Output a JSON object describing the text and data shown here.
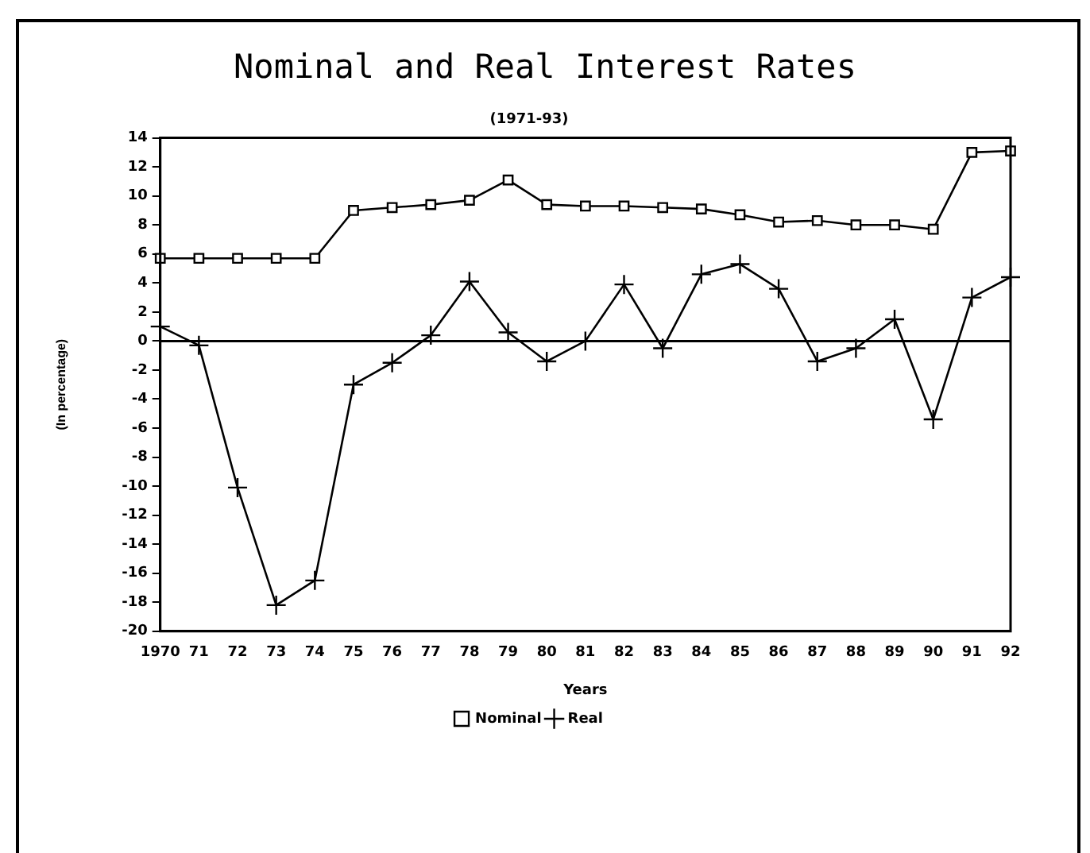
{
  "chart_data": {
    "type": "line",
    "title": "Nominal and Real Interest Rates",
    "subtitle": "(1971-93)",
    "xlabel": "Years",
    "ylabel": "(In percentage)",
    "categories": [
      "1970",
      "71",
      "72",
      "73",
      "74",
      "75",
      "76",
      "77",
      "78",
      "79",
      "80",
      "81",
      "82",
      "83",
      "84",
      "85",
      "86",
      "87",
      "88",
      "89",
      "90",
      "91",
      "92"
    ],
    "series": [
      {
        "name": "Nominal",
        "color": "#000000",
        "marker": "square",
        "values": [
          5.7,
          5.7,
          5.7,
          5.7,
          5.7,
          9.0,
          9.2,
          9.4,
          9.7,
          11.1,
          9.4,
          9.3,
          9.3,
          9.2,
          9.1,
          8.7,
          8.2,
          8.3,
          8.0,
          8.0,
          7.7,
          13.0,
          13.1
        ]
      },
      {
        "name": "Real",
        "color": "#000000",
        "marker": "cross",
        "values": [
          1.0,
          -0.3,
          -10.1,
          -18.2,
          -16.5,
          -3.0,
          -1.5,
          0.4,
          4.1,
          0.6,
          -1.4,
          0.0,
          3.9,
          -0.5,
          4.6,
          5.3,
          3.6,
          -1.4,
          -0.5,
          1.5,
          -5.4,
          3.0,
          4.4
        ]
      }
    ],
    "ylim": [
      -20,
      14
    ],
    "yticks": [
      -20,
      -18,
      -16,
      -14,
      -12,
      -10,
      -8,
      -6,
      -4,
      -2,
      0,
      2,
      4,
      6,
      8,
      10,
      12,
      14
    ],
    "ref_lines": [
      {
        "axis": "y",
        "value": 0
      }
    ],
    "grid": false,
    "legend": "bottom",
    "line_style": "solid"
  }
}
